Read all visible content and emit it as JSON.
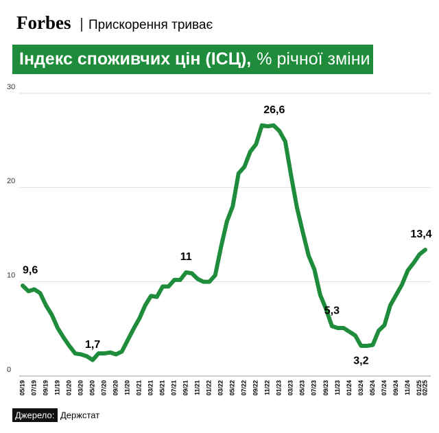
{
  "brand": "Forbes",
  "section": "Прискорення триває",
  "chart_data": {
    "type": "line",
    "title": "Індекс споживчих цін (ІСЦ),",
    "subtitle": "% річної зміни",
    "categories": [
      "05/19",
      null,
      "07/19",
      null,
      "09/19",
      null,
      "11/19",
      null,
      "01/20",
      null,
      "03/20",
      null,
      "05/20",
      null,
      "07/20",
      null,
      "09/20",
      null,
      "11/20",
      null,
      "01/21",
      null,
      "03/21",
      null,
      "05/21",
      null,
      "07/21",
      null,
      "09/21",
      null,
      "11/21",
      null,
      "01/22",
      null,
      "03/22",
      null,
      "05/22",
      null,
      "07/22",
      null,
      "09/22",
      null,
      "11/22",
      null,
      "01/23",
      null,
      "03/23",
      null,
      "05/23",
      null,
      "07/23",
      null,
      "09/23",
      null,
      "11/23",
      null,
      "01/24",
      null,
      "03/24",
      null,
      "05/24",
      null,
      "07/24",
      null,
      "09/24",
      null,
      "11/24",
      null,
      "01/25",
      "02/25"
    ],
    "series": [
      {
        "name": "ІСЦ",
        "color": "#1e8c3a",
        "values": [
          9.6,
          9.0,
          9.2,
          8.8,
          7.5,
          6.5,
          5.1,
          4.1,
          3.2,
          2.4,
          2.3,
          2.1,
          1.7,
          2.4,
          2.4,
          2.5,
          2.3,
          2.6,
          3.8,
          5.0,
          6.1,
          7.5,
          8.5,
          8.4,
          9.5,
          9.5,
          10.2,
          10.2,
          11.0,
          10.9,
          10.3,
          10.0,
          10.0,
          10.7,
          13.7,
          16.4,
          18.0,
          21.5,
          22.2,
          23.8,
          24.6,
          26.6,
          26.5,
          26.6,
          26.0,
          24.9,
          21.3,
          17.9,
          15.3,
          12.8,
          11.3,
          8.6,
          7.1,
          5.3,
          5.1,
          5.1,
          4.7,
          4.3,
          3.2,
          3.2,
          3.3,
          4.8,
          5.4,
          7.5,
          8.6,
          9.7,
          11.2,
          12.0,
          12.9,
          13.4
        ],
        "value_labels": [
          "9,6",
          null,
          null,
          null,
          null,
          null,
          null,
          null,
          null,
          null,
          null,
          null,
          "1,7",
          null,
          null,
          null,
          null,
          null,
          null,
          null,
          null,
          null,
          null,
          null,
          null,
          null,
          null,
          null,
          "11",
          null,
          null,
          null,
          null,
          null,
          null,
          null,
          null,
          null,
          null,
          null,
          null,
          "26,6",
          null,
          null,
          null,
          null,
          null,
          null,
          null,
          null,
          null,
          null,
          null,
          "5,3",
          null,
          null,
          null,
          null,
          "3,2",
          null,
          null,
          null,
          null,
          null,
          null,
          null,
          null,
          null,
          null,
          "13,4"
        ]
      }
    ],
    "ylim": [
      0,
      30
    ],
    "yticks": [
      0,
      10,
      20,
      30
    ],
    "grid": true,
    "source_label": "Джерело:",
    "source": "Держстат"
  }
}
